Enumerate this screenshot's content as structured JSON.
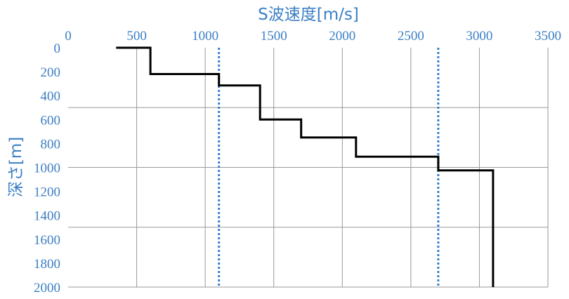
{
  "chart_data": {
    "type": "line",
    "xlabel": "S波速度[m/s]",
    "ylabel": "深さ[m]",
    "x_axis_position": "top",
    "y_axis_inverted": true,
    "xlim": [
      0,
      3500
    ],
    "ylim": [
      0,
      2000
    ],
    "x_ticks": [
      0,
      500,
      1000,
      1500,
      2000,
      2500,
      3000,
      3500
    ],
    "x_tick_labels": [
      "0",
      "500",
      "1000",
      "1500",
      "2000",
      "2500",
      "3000",
      "3500"
    ],
    "y_ticks": [
      0,
      200,
      400,
      600,
      800,
      1000,
      1200,
      1400,
      1600,
      1800,
      2000
    ],
    "y_tick_labels": [
      "0",
      "200",
      "400",
      "600",
      "800",
      "1000",
      "1200",
      "1400",
      "1600",
      "1800",
      "2000"
    ],
    "grid": true,
    "grid_x": [
      500,
      1000,
      1500,
      2000,
      2500,
      3000,
      3500
    ],
    "grid_y": [
      500,
      1000,
      1500,
      2000
    ],
    "series": [
      {
        "style": "step",
        "color": "#000000",
        "points": [
          {
            "x": 350,
            "y": 0
          },
          {
            "x": 600,
            "y": 0
          },
          {
            "x": 600,
            "y": 220
          },
          {
            "x": 1100,
            "y": 220
          },
          {
            "x": 1100,
            "y": 315
          },
          {
            "x": 1400,
            "y": 315
          },
          {
            "x": 1400,
            "y": 600
          },
          {
            "x": 1700,
            "y": 600
          },
          {
            "x": 1700,
            "y": 750
          },
          {
            "x": 2100,
            "y": 750
          },
          {
            "x": 2100,
            "y": 910
          },
          {
            "x": 2700,
            "y": 910
          },
          {
            "x": 2700,
            "y": 1025
          },
          {
            "x": 3100,
            "y": 1025
          },
          {
            "x": 3100,
            "y": 2000
          }
        ]
      }
    ],
    "reference_lines": [
      {
        "orientation": "vertical",
        "x": 1100,
        "style": "dotted",
        "color": "#3b7fd4"
      },
      {
        "orientation": "vertical",
        "x": 2700,
        "style": "dotted",
        "color": "#3b7fd4"
      }
    ]
  }
}
